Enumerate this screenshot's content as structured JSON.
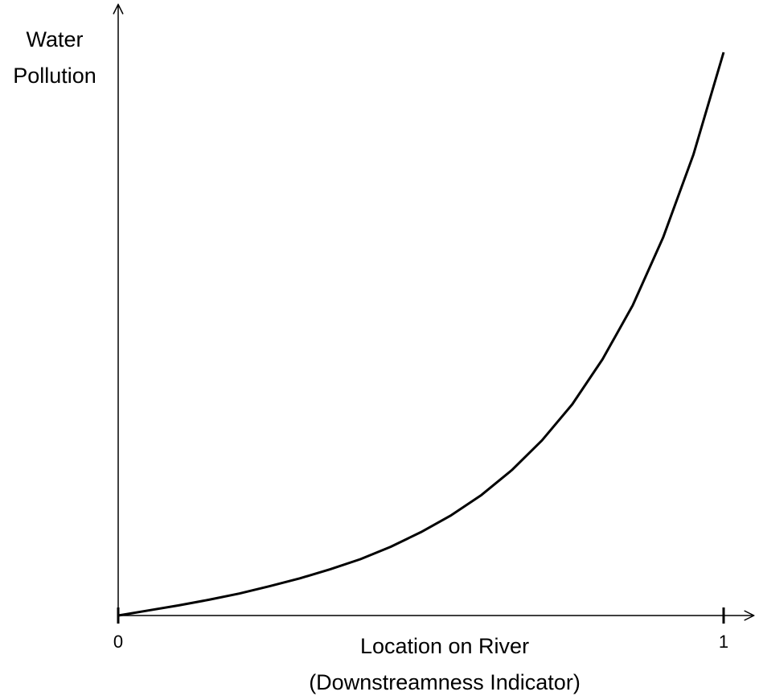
{
  "chart_data": {
    "type": "line",
    "y_label": [
      "Water",
      "Pollution"
    ],
    "x_label": [
      "Location on River",
      "(Downstreamness Indicator)"
    ],
    "x": [
      0,
      0.05,
      0.1,
      0.15,
      0.2,
      0.25,
      0.3,
      0.35,
      0.4,
      0.45,
      0.5,
      0.55,
      0.6,
      0.65,
      0.7,
      0.75,
      0.8,
      0.85,
      0.9,
      0.95,
      1
    ],
    "series": [
      {
        "color": "#000000",
        "values": [
          0,
          0.009,
          0.018,
          0.028,
          0.039,
          0.052,
          0.066,
          0.082,
          0.1,
          0.122,
          0.148,
          0.178,
          0.214,
          0.258,
          0.311,
          0.375,
          0.455,
          0.551,
          0.671,
          0.818,
          1
        ]
      }
    ],
    "xlim": [
      0,
      1.05
    ],
    "ylim": [
      0,
      1.085
    ],
    "xticks": [
      0,
      1
    ],
    "grid": false
  }
}
